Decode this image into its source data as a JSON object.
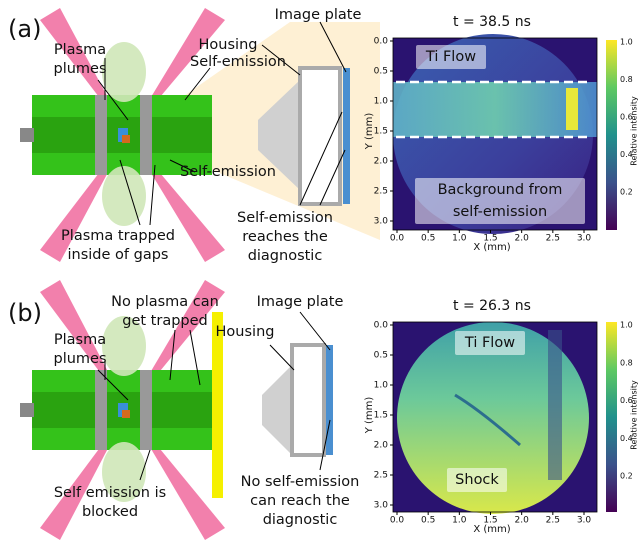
{
  "panels": [
    {
      "label": "(a)",
      "callouts": [
        [
          "Image plate"
        ],
        [
          "Housing"
        ],
        [
          "Plasma",
          "plumes"
        ],
        [
          "Self-emission"
        ],
        [
          "Self-emission"
        ],
        [
          "Plasma trapped",
          "inside of gaps"
        ],
        [
          "Self-emission",
          "reaches the",
          "diagnostic"
        ]
      ],
      "image": {
        "title": "t = 38.5 ns",
        "x_label": "X (mm)",
        "y_label": "Y (mm)",
        "x_ticks": [
          "0.0",
          "0.5",
          "1.0",
          "1.5",
          "2.0",
          "2.5",
          "3.0"
        ],
        "y_ticks": [
          "0.0",
          "0.5",
          "1.0",
          "1.5",
          "2.0",
          "2.5",
          "3.0"
        ],
        "colorbar_label": "Relative intensity",
        "colorbar_ticks": [
          "1.0",
          "0.8",
          "0.6",
          "0.4",
          "0.2"
        ],
        "annotations": [
          [
            "Ti Flow"
          ],
          [
            "Background from",
            "self-emission"
          ]
        ]
      }
    },
    {
      "label": "(b)",
      "callouts": [
        [
          "No plasma can",
          "get trapped"
        ],
        [
          "Image plate"
        ],
        [
          "Housing"
        ],
        [
          "Plasma",
          "plumes"
        ],
        [
          "Self emission is",
          "blocked"
        ],
        [
          "No self-emission",
          "can reach the",
          "diagnostic"
        ]
      ],
      "image": {
        "title": "t = 26.3 ns",
        "x_label": "X (mm)",
        "y_label": "Y (mm)",
        "x_ticks": [
          "0.0",
          "0.5",
          "1.0",
          "1.5",
          "2.0",
          "2.5",
          "3.0"
        ],
        "y_ticks": [
          "0.0",
          "0.5",
          "1.0",
          "1.5",
          "2.0",
          "2.5",
          "3.0"
        ],
        "colorbar_label": "Relative intensity",
        "colorbar_ticks": [
          "1.0",
          "0.8",
          "0.6",
          "0.4",
          "0.2"
        ],
        "annotations": [
          [
            "Ti Flow"
          ],
          [
            "Shock"
          ]
        ]
      }
    }
  ]
}
